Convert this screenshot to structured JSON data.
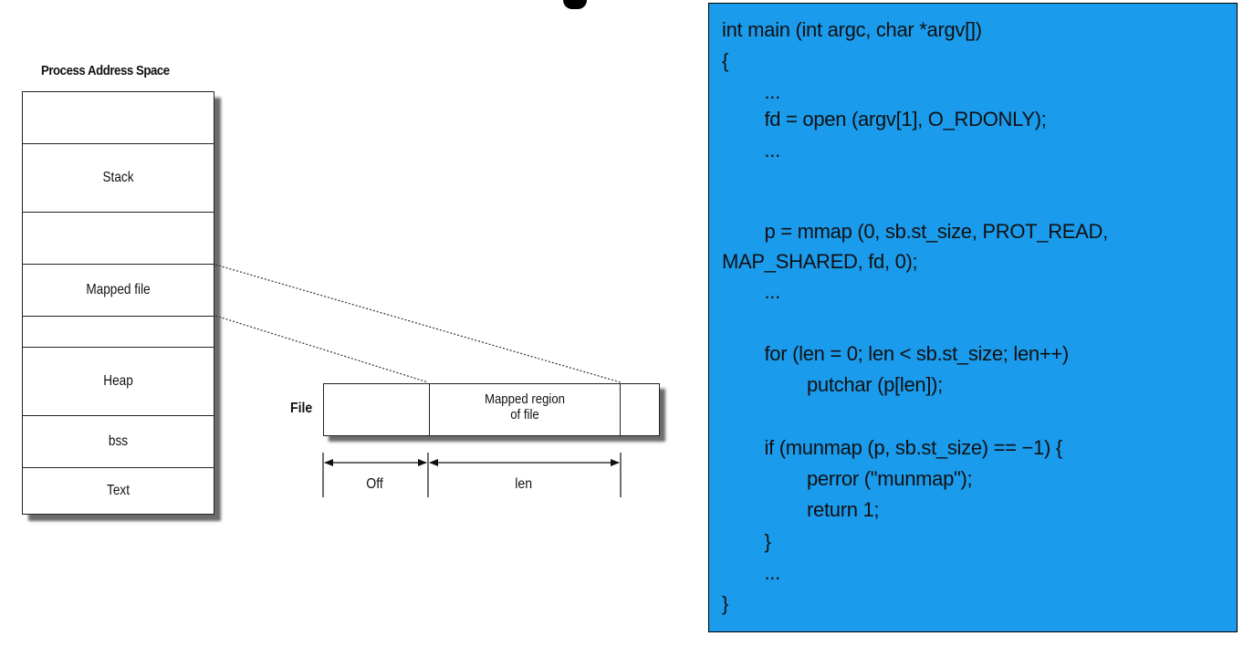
{
  "diagram": {
    "process_title": "Process Address Space",
    "segments": [
      {
        "label": ""
      },
      {
        "label": "Stack"
      },
      {
        "label": ""
      },
      {
        "label": "Mapped file"
      },
      {
        "label": ""
      },
      {
        "label": "Heap"
      },
      {
        "label": "bss"
      },
      {
        "label": "Text"
      }
    ],
    "file_label": "File",
    "mapped_region_label_line1": "Mapped region",
    "mapped_region_label_line2": "of file",
    "off_label": "Off",
    "len_label": "len"
  },
  "code": {
    "lines": [
      "int main (int argc, char *argv[])",
      "{",
      "        ...",
      "        fd = open (argv[1], O_RDONLY);",
      "        ...",
      "",
      "        p = mmap (0, sb.st_size, PROT_READ,",
      "MAP_SHARED, fd, 0);",
      "        ...",
      "",
      "        for (len = 0; len < sb.st_size; len++)",
      "                putchar (p[len]);",
      "",
      "        if (munmap (p, sb.st_size) == −1) {",
      "                perror (\"munmap\");",
      "                return 1;",
      "        }",
      "        ...",
      "}"
    ],
    "panel_color": "#1a9bec"
  }
}
